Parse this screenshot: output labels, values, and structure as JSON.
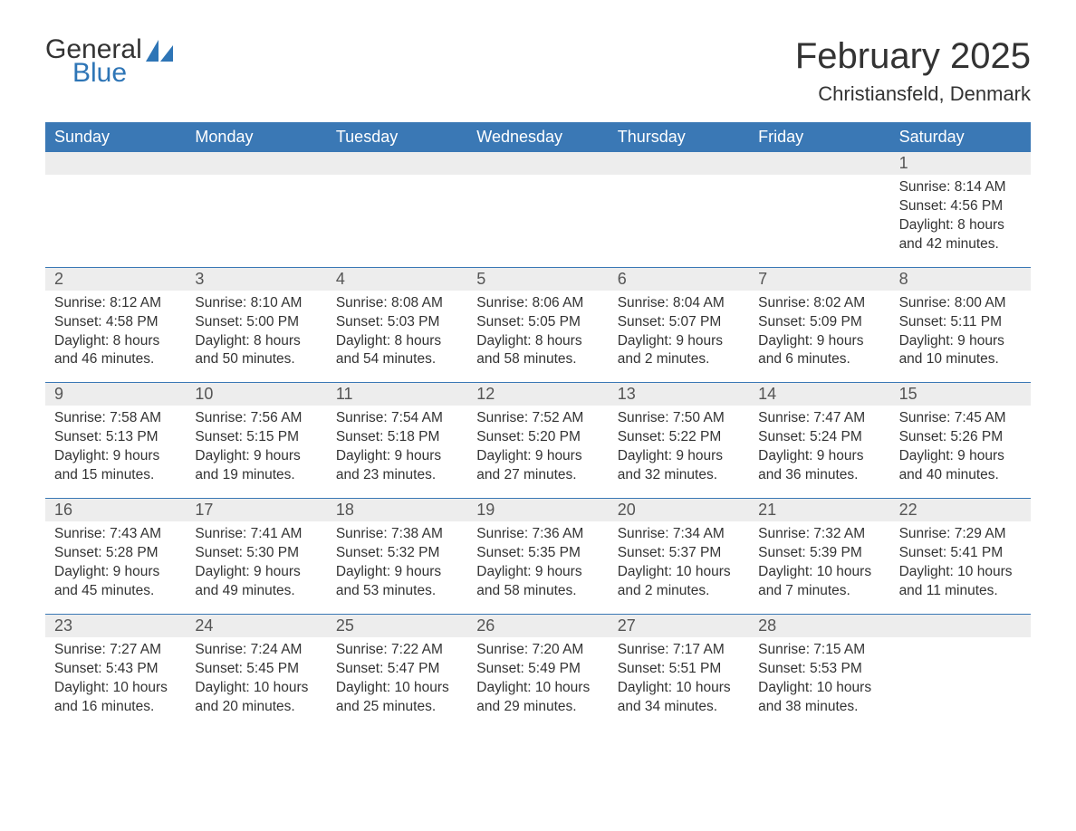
{
  "logo": {
    "word1": "General",
    "word2": "Blue",
    "accent_color": "#2e75b6",
    "shape_color": "#2e75b6"
  },
  "title": "February 2025",
  "location": "Christiansfeld, Denmark",
  "colors": {
    "header_bg": "#3a78b5",
    "header_text": "#ffffff",
    "daynum_bg": "#ededed",
    "border": "#3a78b5",
    "body_bg": "#ffffff",
    "text": "#333333"
  },
  "day_names": [
    "Sunday",
    "Monday",
    "Tuesday",
    "Wednesday",
    "Thursday",
    "Friday",
    "Saturday"
  ],
  "weeks": [
    [
      null,
      null,
      null,
      null,
      null,
      null,
      {
        "n": "1",
        "sunrise": "8:14 AM",
        "sunset": "4:56 PM",
        "daylight": "8 hours and 42 minutes."
      }
    ],
    [
      {
        "n": "2",
        "sunrise": "8:12 AM",
        "sunset": "4:58 PM",
        "daylight": "8 hours and 46 minutes."
      },
      {
        "n": "3",
        "sunrise": "8:10 AM",
        "sunset": "5:00 PM",
        "daylight": "8 hours and 50 minutes."
      },
      {
        "n": "4",
        "sunrise": "8:08 AM",
        "sunset": "5:03 PM",
        "daylight": "8 hours and 54 minutes."
      },
      {
        "n": "5",
        "sunrise": "8:06 AM",
        "sunset": "5:05 PM",
        "daylight": "8 hours and 58 minutes."
      },
      {
        "n": "6",
        "sunrise": "8:04 AM",
        "sunset": "5:07 PM",
        "daylight": "9 hours and 2 minutes."
      },
      {
        "n": "7",
        "sunrise": "8:02 AM",
        "sunset": "5:09 PM",
        "daylight": "9 hours and 6 minutes."
      },
      {
        "n": "8",
        "sunrise": "8:00 AM",
        "sunset": "5:11 PM",
        "daylight": "9 hours and 10 minutes."
      }
    ],
    [
      {
        "n": "9",
        "sunrise": "7:58 AM",
        "sunset": "5:13 PM",
        "daylight": "9 hours and 15 minutes."
      },
      {
        "n": "10",
        "sunrise": "7:56 AM",
        "sunset": "5:15 PM",
        "daylight": "9 hours and 19 minutes."
      },
      {
        "n": "11",
        "sunrise": "7:54 AM",
        "sunset": "5:18 PM",
        "daylight": "9 hours and 23 minutes."
      },
      {
        "n": "12",
        "sunrise": "7:52 AM",
        "sunset": "5:20 PM",
        "daylight": "9 hours and 27 minutes."
      },
      {
        "n": "13",
        "sunrise": "7:50 AM",
        "sunset": "5:22 PM",
        "daylight": "9 hours and 32 minutes."
      },
      {
        "n": "14",
        "sunrise": "7:47 AM",
        "sunset": "5:24 PM",
        "daylight": "9 hours and 36 minutes."
      },
      {
        "n": "15",
        "sunrise": "7:45 AM",
        "sunset": "5:26 PM",
        "daylight": "9 hours and 40 minutes."
      }
    ],
    [
      {
        "n": "16",
        "sunrise": "7:43 AM",
        "sunset": "5:28 PM",
        "daylight": "9 hours and 45 minutes."
      },
      {
        "n": "17",
        "sunrise": "7:41 AM",
        "sunset": "5:30 PM",
        "daylight": "9 hours and 49 minutes."
      },
      {
        "n": "18",
        "sunrise": "7:38 AM",
        "sunset": "5:32 PM",
        "daylight": "9 hours and 53 minutes."
      },
      {
        "n": "19",
        "sunrise": "7:36 AM",
        "sunset": "5:35 PM",
        "daylight": "9 hours and 58 minutes."
      },
      {
        "n": "20",
        "sunrise": "7:34 AM",
        "sunset": "5:37 PM",
        "daylight": "10 hours and 2 minutes."
      },
      {
        "n": "21",
        "sunrise": "7:32 AM",
        "sunset": "5:39 PM",
        "daylight": "10 hours and 7 minutes."
      },
      {
        "n": "22",
        "sunrise": "7:29 AM",
        "sunset": "5:41 PM",
        "daylight": "10 hours and 11 minutes."
      }
    ],
    [
      {
        "n": "23",
        "sunrise": "7:27 AM",
        "sunset": "5:43 PM",
        "daylight": "10 hours and 16 minutes."
      },
      {
        "n": "24",
        "sunrise": "7:24 AM",
        "sunset": "5:45 PM",
        "daylight": "10 hours and 20 minutes."
      },
      {
        "n": "25",
        "sunrise": "7:22 AM",
        "sunset": "5:47 PM",
        "daylight": "10 hours and 25 minutes."
      },
      {
        "n": "26",
        "sunrise": "7:20 AM",
        "sunset": "5:49 PM",
        "daylight": "10 hours and 29 minutes."
      },
      {
        "n": "27",
        "sunrise": "7:17 AM",
        "sunset": "5:51 PM",
        "daylight": "10 hours and 34 minutes."
      },
      {
        "n": "28",
        "sunrise": "7:15 AM",
        "sunset": "5:53 PM",
        "daylight": "10 hours and 38 minutes."
      },
      null
    ]
  ],
  "labels": {
    "sunrise": "Sunrise:",
    "sunset": "Sunset:",
    "daylight": "Daylight:"
  }
}
